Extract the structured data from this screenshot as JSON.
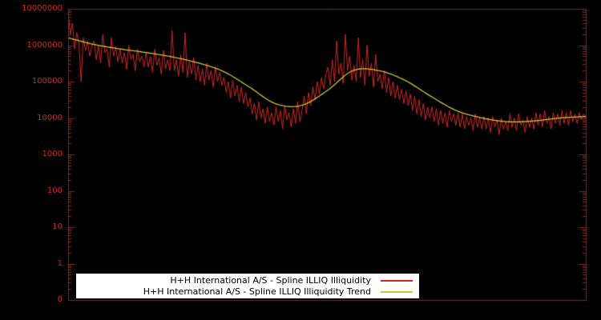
{
  "window": {
    "background": "#000000"
  },
  "chart_data": {
    "type": "line",
    "title": "",
    "xlabel": "",
    "ylabel": "",
    "y_scale": "log",
    "grid": false,
    "legend_position": "bottom-center",
    "ylim_log10": [
      -1,
      7
    ],
    "y_tick_labels": [
      "10000000",
      "1000000",
      "100000",
      "10000",
      "1000",
      "100",
      "10",
      "1",
      "0"
    ],
    "y_tick_logs": [
      7,
      6,
      5,
      4,
      3,
      2,
      1,
      0,
      -1
    ],
    "colors": {
      "background": "#000000",
      "axis_border": "#8b241c",
      "tick_label": "#cf2724",
      "series_red": "#cf2724",
      "trend_yellow": "#cdc13c",
      "legend_background": "#ffffff",
      "legend_text": "#000000"
    },
    "series": [
      {
        "name": "H+H International A/S - Spline ILLIQ Illiquidity",
        "color": "#cf2724",
        "smooth": false,
        "values": [
          7900000,
          2000000,
          4000000,
          790000,
          2200000,
          1100000,
          100000,
          1600000,
          710000,
          1300000,
          500000,
          1000000,
          1300000,
          400000,
          1000000,
          320000,
          2000000,
          630000,
          790000,
          250000,
          1600000,
          500000,
          890000,
          350000,
          790000,
          320000,
          630000,
          220000,
          1000000,
          400000,
          560000,
          200000,
          790000,
          350000,
          500000,
          250000,
          630000,
          250000,
          500000,
          180000,
          790000,
          280000,
          450000,
          160000,
          710000,
          220000,
          400000,
          200000,
          2500000,
          200000,
          400000,
          140000,
          560000,
          180000,
          2200000,
          130000,
          350000,
          160000,
          450000,
          110000,
          280000,
          100000,
          220000,
          79000,
          320000,
          110000,
          200000,
          71000,
          250000,
          100000,
          180000,
          79000,
          130000,
          50000,
          100000,
          35000,
          110000,
          40000,
          79000,
          28000,
          71000,
          25000,
          50000,
          20000,
          35000,
          13000,
          25000,
          8900,
          28000,
          10000,
          18000,
          7100,
          20000,
          7900,
          14000,
          6300,
          20000,
          7900,
          16000,
          5000,
          22000,
          8900,
          14000,
          5600,
          18000,
          7100,
          28000,
          7900,
          16000,
          40000,
          13000,
          50000,
          22000,
          71000,
          32000,
          100000,
          45000,
          130000,
          63000,
          160000,
          250000,
          79000,
          400000,
          100000,
          1300000,
          160000,
          320000,
          89000,
          2000000,
          200000,
          500000,
          110000,
          280000,
          100000,
          1600000,
          130000,
          400000,
          79000,
          1000000,
          140000,
          320000,
          71000,
          560000,
          100000,
          160000,
          63000,
          200000,
          50000,
          130000,
          40000,
          100000,
          35000,
          79000,
          32000,
          63000,
          25000,
          56000,
          22000,
          45000,
          16000,
          40000,
          13000,
          32000,
          11000,
          25000,
          8900,
          20000,
          10000,
          20000,
          7900,
          18000,
          6300,
          16000,
          7100,
          14000,
          5600,
          16000,
          7900,
          13000,
          6300,
          14000,
          5600,
          13000,
          5000,
          11000,
          6300,
          10000,
          4500,
          13000,
          5600,
          10000,
          5000,
          11000,
          5000,
          10000,
          4000,
          11000,
          5600,
          8900,
          3500,
          10000,
          5000,
          7900,
          4500,
          13000,
          5600,
          10000,
          4500,
          13000,
          6300,
          8900,
          4000,
          11000,
          5600,
          10000,
          5000,
          14000,
          6300,
          13000,
          5600,
          16000,
          7100,
          11000,
          5000,
          14000,
          7100,
          13000,
          6300,
          16000,
          7100,
          14000,
          6300,
          16000,
          7900,
          13000,
          7100,
          14000,
          8900,
          13000,
          10000
        ]
      },
      {
        "name": "H+H International A/S - Spline ILLIQ Illiquidity Trend",
        "color": "#cdc13c",
        "smooth": true,
        "values": [
          1600000,
          1050000,
          790000,
          630000,
          480000,
          330000,
          190000,
          71000,
          25000,
          22000,
          56000,
          200000,
          200000,
          110000,
          40000,
          16000,
          10000,
          7900,
          8300,
          10000,
          11000
        ]
      }
    ]
  }
}
